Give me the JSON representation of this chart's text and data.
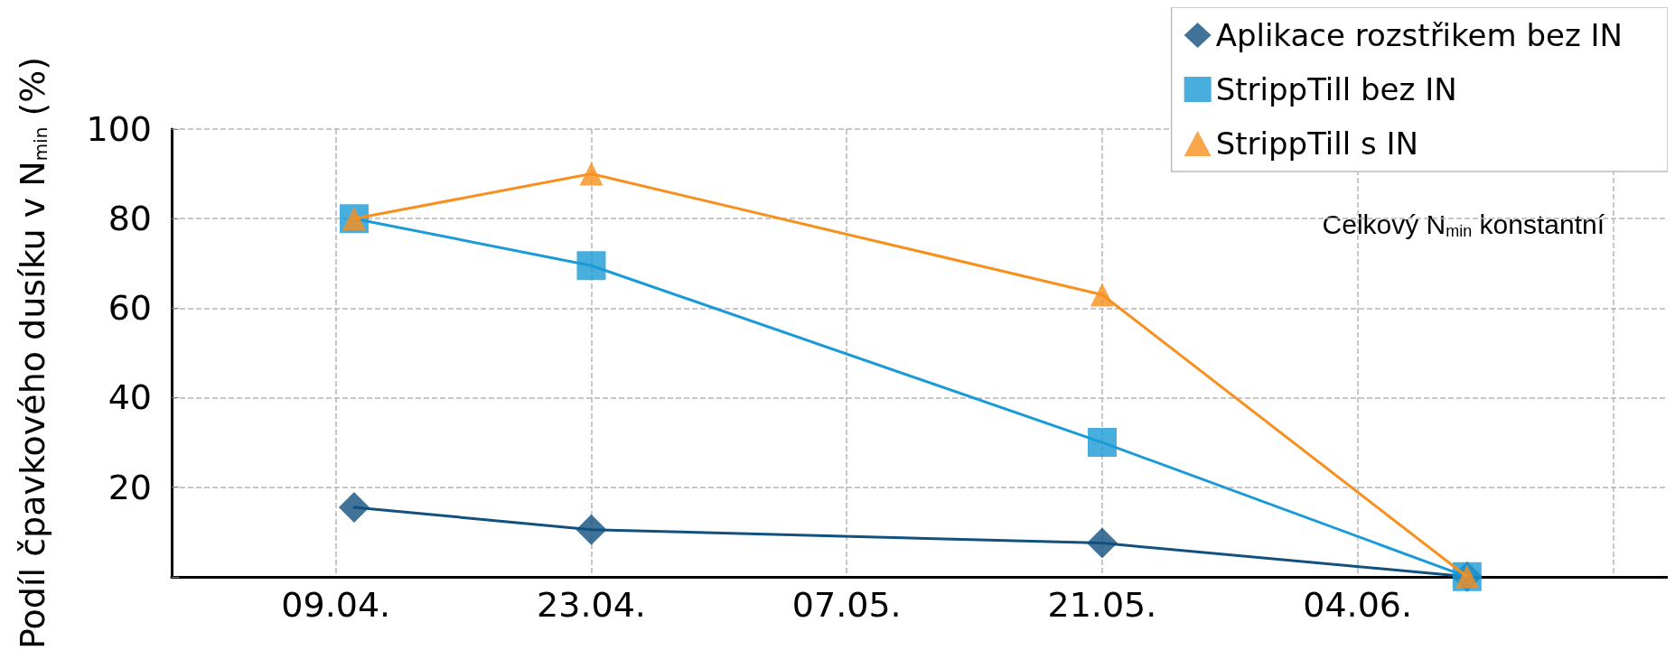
{
  "chart_data": {
    "type": "line",
    "ylabel": "Podíl čpavkového dusíku v N$_{min}$ (%)",
    "annotations": [
      "Celkový N$_{min}$ konstantní"
    ],
    "xlim": [
      "--03-31",
      "--06-21"
    ],
    "xticks": [
      {
        "value": "--04-09",
        "label": "09.04."
      },
      {
        "value": "--04-23",
        "label": "23.04."
      },
      {
        "value": "--05-07",
        "label": "07.05."
      },
      {
        "value": "--05-21",
        "label": "21.05."
      },
      {
        "value": "--06-04",
        "label": "04.06."
      },
      {
        "value": "--06-18",
        "label": null
      }
    ],
    "ylim": [
      0,
      100
    ],
    "yticks": [
      {
        "value": 0,
        "label": null
      },
      20,
      40,
      60,
      80,
      100
    ],
    "grid": true,
    "legend": "top right",
    "line_style": "solid",
    "series": [
      {
        "name": "Aplikace rozstřikem bez IN",
        "color": "#12507e",
        "marker": "diamond",
        "x": [
          "--04-10",
          "--04-23",
          "--05-21",
          "--06-10"
        ],
        "values": [
          15.5,
          10.5,
          7.5,
          0
        ]
      },
      {
        "name": "StrippTill bez IN",
        "color": "#1a9ad6",
        "marker": "square",
        "x": [
          "--04-10",
          "--04-23",
          "--05-21",
          "--06-10"
        ],
        "values": [
          80,
          69.5,
          30,
          0
        ]
      },
      {
        "name": "StrippTill s IN",
        "color": "#f7901e",
        "marker": "triangle",
        "x": [
          "--04-10",
          "--04-23",
          "--05-21",
          "--06-10"
        ],
        "values": [
          80,
          90,
          63,
          0
        ]
      }
    ]
  }
}
